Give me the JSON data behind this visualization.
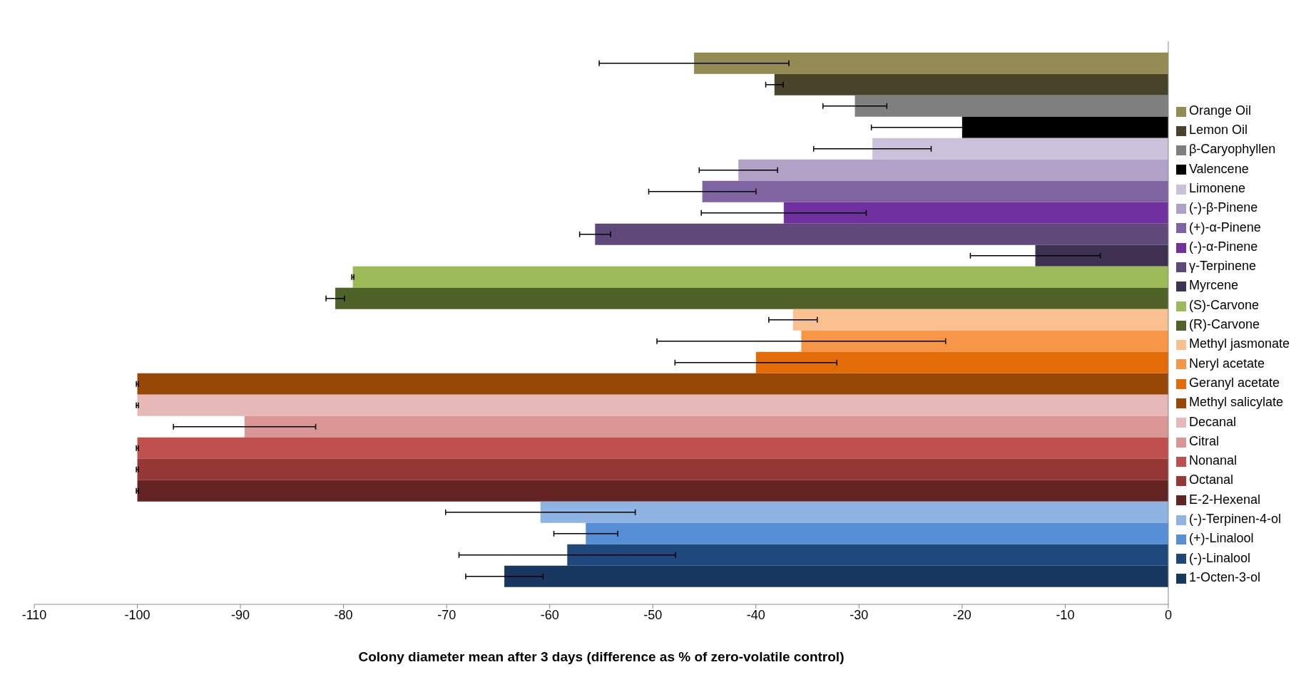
{
  "chart_data": {
    "type": "bar",
    "orientation": "horizontal",
    "xlabel": "Colony diameter mean after 3 days (difference as % of zero-volatile control)",
    "categories": [
      null
    ],
    "xlim": [
      -110,
      0
    ],
    "xticks": [
      -110,
      -100,
      -90,
      -80,
      -70,
      -60,
      -50,
      -40,
      -30,
      -20,
      -10,
      0
    ],
    "grid": false,
    "legend": "right",
    "series": [
      {
        "name": "Orange Oil",
        "color": "#948a54",
        "values": [
          -46.0
        ],
        "errors": [
          9.2
        ]
      },
      {
        "name": "Lemon Oil",
        "color": "#494429",
        "values": [
          -38.2
        ],
        "errors": [
          0.85
        ]
      },
      {
        "name": "β-Caryophyllen",
        "color": "#7f7f7f",
        "values": [
          -30.4
        ],
        "errors": [
          3.1
        ]
      },
      {
        "name": "Valencene",
        "color": "#000000",
        "values": [
          -20.0
        ],
        "errors": [
          8.8
        ]
      },
      {
        "name": "Limonene",
        "color": "#ccc1da",
        "values": [
          -28.7
        ],
        "errors": [
          5.7
        ]
      },
      {
        "name": "(-)-β-Pinene",
        "color": "#b2a1c7",
        "values": [
          -41.7
        ],
        "errors": [
          3.8
        ]
      },
      {
        "name": "(+)-α-Pinene",
        "color": "#8064a2",
        "values": [
          -45.2
        ],
        "errors": [
          5.2
        ]
      },
      {
        "name": "(-)-α-Pinene",
        "color": "#7030a0",
        "values": [
          -37.3
        ],
        "errors": [
          8.0
        ]
      },
      {
        "name": "γ-Terpinene",
        "color": "#5f497a",
        "values": [
          -55.6
        ],
        "errors": [
          1.5
        ]
      },
      {
        "name": "Myrcene",
        "color": "#3f3151",
        "values": [
          -12.9
        ],
        "errors": [
          6.3
        ]
      },
      {
        "name": "(S)-Carvone",
        "color": "#9bbb59",
        "values": [
          -79.1
        ],
        "errors": [
          0.1
        ]
      },
      {
        "name": "(R)-Carvone",
        "color": "#4f6228",
        "values": [
          -80.8
        ],
        "errors": [
          0.9
        ]
      },
      {
        "name": "Methyl jasmonate",
        "color": "#fac090",
        "values": [
          -36.4
        ],
        "errors": [
          2.35
        ]
      },
      {
        "name": "Neryl acetate",
        "color": "#f79646",
        "values": [
          -35.6
        ],
        "errors": [
          14.0
        ]
      },
      {
        "name": "Geranyl acetate",
        "color": "#e36c09",
        "values": [
          -40.0
        ],
        "errors": [
          7.85
        ]
      },
      {
        "name": "Methyl salicylate",
        "color": "#974806",
        "values": [
          -100
        ],
        "errors": [
          0.1
        ]
      },
      {
        "name": "Decanal",
        "color": "#e6b9b8",
        "values": [
          -100
        ],
        "errors": [
          0.1
        ]
      },
      {
        "name": "Citral",
        "color": "#d99694",
        "values": [
          -89.6
        ],
        "errors": [
          6.9
        ]
      },
      {
        "name": "Nonanal",
        "color": "#c0504d",
        "values": [
          -100
        ],
        "errors": [
          0.1
        ]
      },
      {
        "name": "Octanal",
        "color": "#953735",
        "values": [
          -100
        ],
        "errors": [
          0.1
        ]
      },
      {
        "name": "E-2-Hexenal",
        "color": "#632423",
        "values": [
          -100
        ],
        "errors": [
          0.1
        ]
      },
      {
        "name": "(-)-Terpinen-4-ol",
        "color": "#8eb4e3",
        "values": [
          -60.9
        ],
        "errors": [
          9.2
        ]
      },
      {
        "name": "(+)-Linalool",
        "color": "#558ed5",
        "values": [
          -56.5
        ],
        "errors": [
          3.1
        ]
      },
      {
        "name": "(-)-Linalool",
        "color": "#1f497d",
        "values": [
          -58.3
        ],
        "errors": [
          10.5
        ]
      },
      {
        "name": "1-Octen-3-ol",
        "color": "#17375e",
        "values": [
          -64.4
        ],
        "errors": [
          3.75
        ]
      }
    ]
  }
}
